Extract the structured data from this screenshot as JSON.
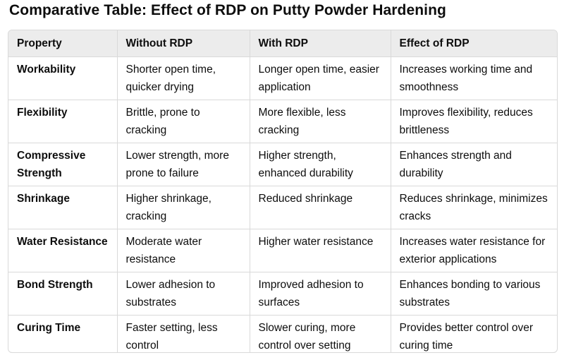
{
  "title": "Comparative Table: Effect of RDP on Putty Powder Hardening",
  "headers": [
    "Property",
    "Without RDP",
    "With RDP",
    "Effect of RDP"
  ],
  "rows": [
    [
      "Workability",
      "Shorter open time, quicker drying",
      "Longer open time, easier application",
      "Increases working time and smoothness"
    ],
    [
      "Flexibility",
      "Brittle, prone to cracking",
      "More flexible, less cracking",
      "Improves flexibility, reduces brittleness"
    ],
    [
      "Compressive Strength",
      "Lower strength, more prone to failure",
      "Higher strength, enhanced durability",
      "Enhances strength and durability"
    ],
    [
      "Shrinkage",
      "Higher shrinkage, cracking",
      "Reduced shrinkage",
      "Reduces shrinkage, minimizes cracks"
    ],
    [
      "Water Resistance",
      "Moderate water resistance",
      "Higher water resistance",
      "Increases water resistance for exterior applications"
    ],
    [
      "Bond Strength",
      "Lower adhesion to substrates",
      "Improved adhesion to surfaces",
      "Enhances bonding to various substrates"
    ],
    [
      "Curing Time",
      "Faster setting, less control",
      "Slower curing, more control over setting",
      "Provides better control over curing time"
    ]
  ]
}
